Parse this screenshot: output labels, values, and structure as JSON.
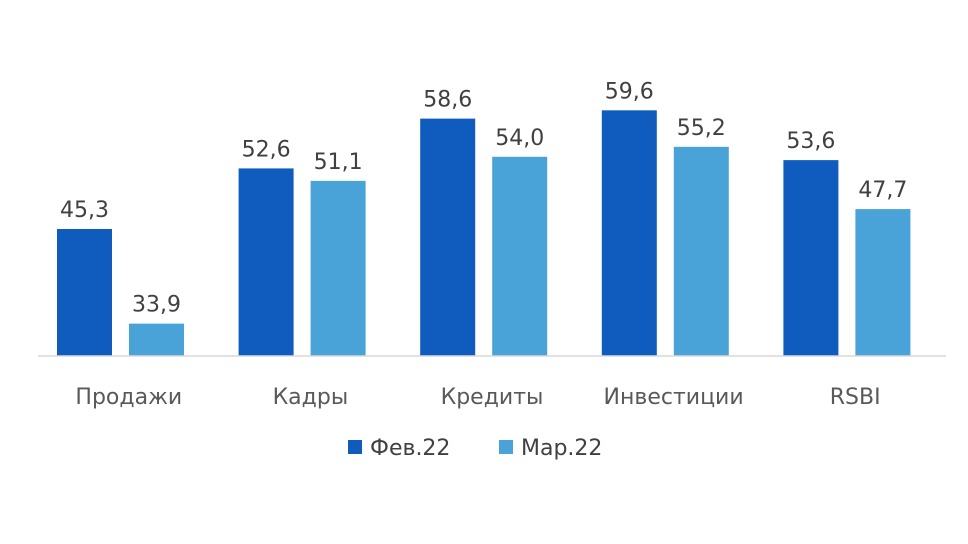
{
  "chart_data": {
    "type": "bar",
    "categories": [
      "Продажи",
      "Кадры",
      "Кредиты",
      "Инвестиции",
      "RSBI"
    ],
    "series": [
      {
        "name": "Фев.22",
        "color": "#0f5cbe",
        "values": [
          45.3,
          52.6,
          58.6,
          59.6,
          53.6
        ],
        "labels": [
          "45,3",
          "52,6",
          "58,6",
          "59,6",
          "53,6"
        ]
      },
      {
        "name": "Мар.22",
        "color": "#4aa3d8",
        "values": [
          33.9,
          51.1,
          54.0,
          55.2,
          47.7
        ],
        "labels": [
          "33,9",
          "51,1",
          "54,0",
          "55,2",
          "47,7"
        ]
      }
    ],
    "ylim": [
      30,
      65
    ],
    "grid": false,
    "legend_position": "bottom"
  }
}
